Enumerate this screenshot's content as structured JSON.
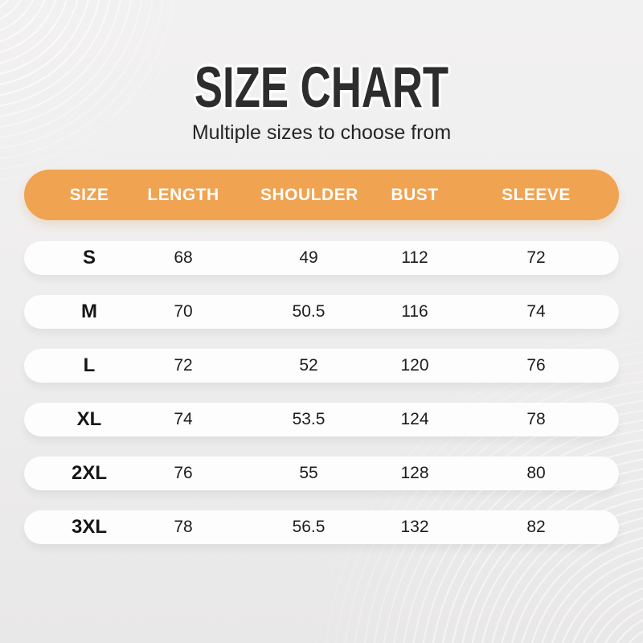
{
  "page": {
    "title": "SIZE CHART",
    "subtitle": "Multiple sizes to choose from"
  },
  "colors": {
    "accent_orange": "#F0A351",
    "header_text": "#FFFFFF",
    "title_text": "#2E2D2E",
    "body_text": "#1D1D1D",
    "row_background": "#FDFDFD",
    "page_background": "#EFEEEE"
  },
  "table": {
    "columns": [
      "SIZE",
      "LENGTH",
      "SHOULDER",
      "BUST",
      "SLEEVE"
    ],
    "rows": [
      {
        "size": "S",
        "values": [
          "68",
          "49",
          "112",
          "72"
        ]
      },
      {
        "size": "M",
        "values": [
          "70",
          "50.5",
          "116",
          "74"
        ]
      },
      {
        "size": "L",
        "values": [
          "72",
          "52",
          "120",
          "76"
        ]
      },
      {
        "size": "XL",
        "values": [
          "74",
          "53.5",
          "124",
          "78"
        ]
      },
      {
        "size": "2XL",
        "values": [
          "76",
          "55",
          "128",
          "80"
        ]
      },
      {
        "size": "3XL",
        "values": [
          "78",
          "56.5",
          "132",
          "82"
        ]
      }
    ]
  },
  "chart_data": {
    "type": "table",
    "title": "SIZE CHART",
    "subtitle": "Multiple sizes to choose from",
    "columns": [
      "SIZE",
      "LENGTH",
      "SHOULDER",
      "BUST",
      "SLEEVE"
    ],
    "rows": [
      [
        "S",
        68,
        49,
        112,
        72
      ],
      [
        "M",
        70,
        50.5,
        116,
        74
      ],
      [
        "L",
        72,
        52,
        120,
        76
      ],
      [
        "XL",
        74,
        53.5,
        124,
        78
      ],
      [
        "2XL",
        76,
        55,
        128,
        80
      ],
      [
        "3XL",
        78,
        56.5,
        132,
        82
      ]
    ],
    "legend_position": "none",
    "grid": false
  }
}
